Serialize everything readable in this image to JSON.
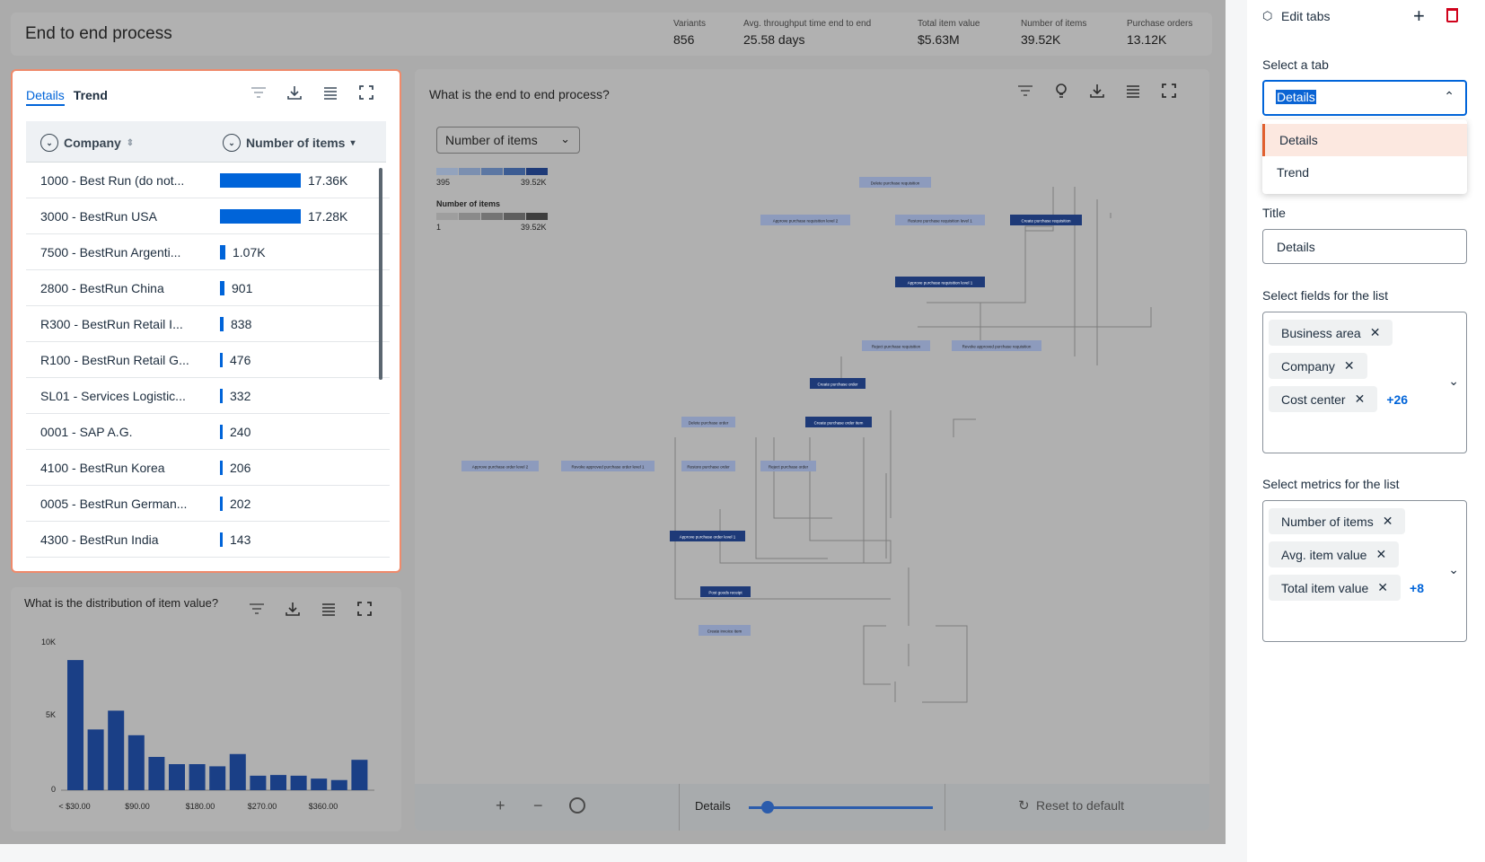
{
  "header": {
    "title": "End to end process",
    "kpis": [
      {
        "label": "Variants",
        "value": "856"
      },
      {
        "label": "Avg. throughput time end to end",
        "value": "25.58 days"
      },
      {
        "label": "Total item value",
        "value": "$5.63M"
      },
      {
        "label": "Number of items",
        "value": "39.52K"
      },
      {
        "label": "Purchase orders",
        "value": "13.12K"
      }
    ]
  },
  "details_card": {
    "tabs": [
      "Details",
      "Trend"
    ],
    "columns": [
      "Company",
      "Number of items"
    ],
    "rows": [
      {
        "name": "1000 - Best Run (do not...",
        "value": "17.36K",
        "fraction": 1.0
      },
      {
        "name": "3000 - BestRun USA",
        "value": "17.28K",
        "fraction": 0.995
      },
      {
        "name": "7500 - BestRun Argenti...",
        "value": "1.07K",
        "fraction": 0.062
      },
      {
        "name": "2800 - BestRun China",
        "value": "901",
        "fraction": 0.052
      },
      {
        "name": "R300 - BestRun Retail I...",
        "value": "838",
        "fraction": 0.048
      },
      {
        "name": "R100 - BestRun Retail G...",
        "value": "476",
        "fraction": 0.027
      },
      {
        "name": "SL01 - Services Logistic...",
        "value": "332",
        "fraction": 0.019
      },
      {
        "name": "0001 - SAP A.G.",
        "value": "240",
        "fraction": 0.014
      },
      {
        "name": "4100 - BestRun Korea",
        "value": "206",
        "fraction": 0.012
      },
      {
        "name": "0005 - BestRun German...",
        "value": "202",
        "fraction": 0.012
      },
      {
        "name": "4300 - BestRun India",
        "value": "143",
        "fraction": 0.008
      }
    ]
  },
  "histogram_card": {
    "title": "What is the distribution of item value?",
    "y_ticks": [
      "10K",
      "5K",
      "0"
    ],
    "x_ticks": [
      "< $30.00",
      "$90.00",
      "$180.00",
      "$270.00",
      "$360.00"
    ],
    "values": [
      9000,
      4200,
      5500,
      3800,
      2300,
      1800,
      1800,
      1650,
      2500,
      1000,
      1050,
      1000,
      800,
      700,
      2100
    ]
  },
  "process_card": {
    "title": "What is the end to end process?",
    "metric_select": "Number of items",
    "legend1": {
      "min": "395",
      "max": "39.52K"
    },
    "legend2": {
      "label": "Number of items",
      "min": "1",
      "max": "39.52K"
    },
    "bottom": {
      "details_label": "Details",
      "reset_label": "Reset to default",
      "slider_value": 0.1
    },
    "nodes": [
      {
        "label": "Delete purchase requisition"
      },
      {
        "label": "Approve purchase requisition level 2"
      },
      {
        "label": "Restore purchase requisition level 1"
      },
      {
        "label": "Create purchase requisition"
      },
      {
        "label": "Approve purchase requisition level 1"
      },
      {
        "label": "Reject purchase requisition"
      },
      {
        "label": "Revoke approved purchase requisition"
      },
      {
        "label": "Create purchase order"
      },
      {
        "label": "Create purchase order item"
      },
      {
        "label": "Delete purchase order"
      },
      {
        "label": "Approve purchase order level 2"
      },
      {
        "label": "Revoke approved purchase order level 1"
      },
      {
        "label": "Restore purchase order"
      },
      {
        "label": "Reject purchase order"
      },
      {
        "label": "Approve purchase order level 1"
      },
      {
        "label": "Post goods receipt"
      },
      {
        "label": "Create invoice item"
      }
    ]
  },
  "side_panel": {
    "title": "Edit tabs",
    "select_tab_label": "Select a tab",
    "select_tab_value": "Details",
    "dropdown_options": [
      "Details",
      "Trend"
    ],
    "title_label": "Title",
    "title_value": "Details",
    "fields_label": "Select fields for the list",
    "fields": [
      "Business area",
      "Company",
      "Cost center"
    ],
    "fields_more": "+26",
    "metrics_label": "Select metrics for the list",
    "metrics": [
      "Number of items",
      "Avg. item value",
      "Total item value"
    ],
    "metrics_more": "+8"
  },
  "colors": {
    "accent": "#0064d9",
    "selected_border": "#ef8a6b",
    "danger": "#d0021b",
    "node_dark": "#1e3a78",
    "node_light": "#8d9bbd"
  }
}
